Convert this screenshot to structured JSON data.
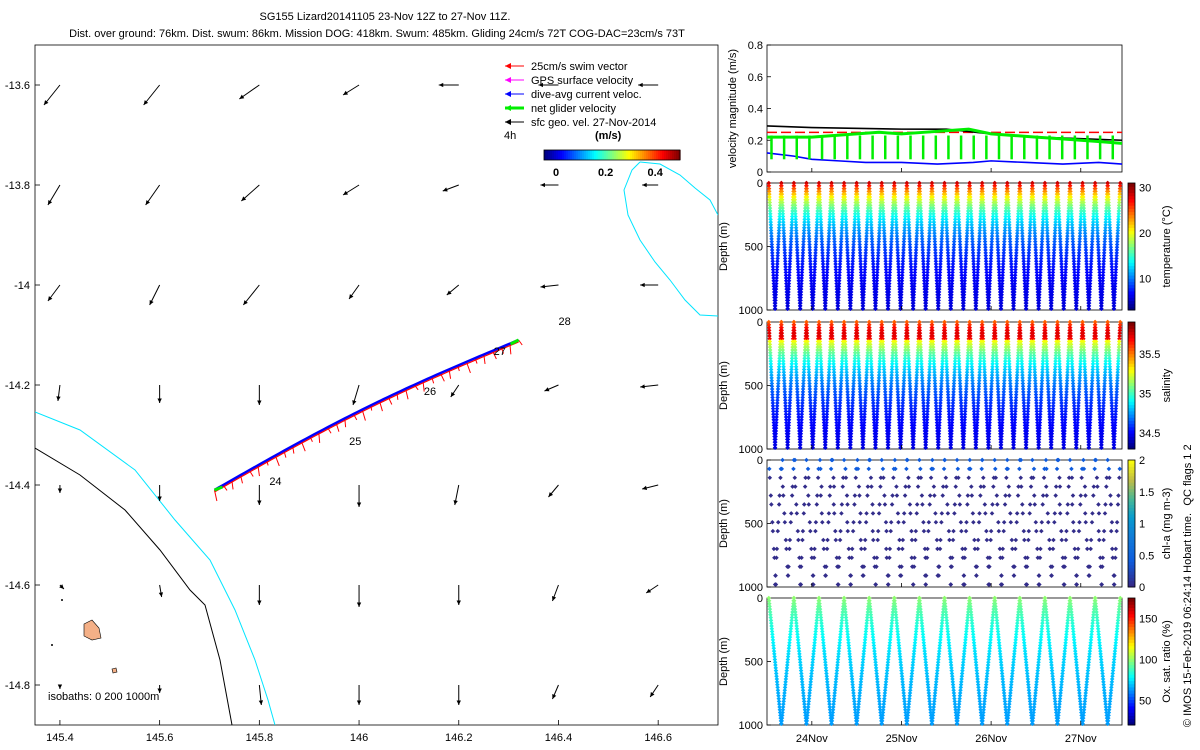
{
  "header": {
    "title": "SG155 Lizard20141105 23-Nov 12Z to 27-Nov 11Z.",
    "subtitle": "Dist. over ground: 76km. Dist. swum: 86km. Mission DOG: 418km. Swum: 485km. Gliding 24cm/s 72T COG-DAC=23cm/s 73T"
  },
  "legend": {
    "items": [
      {
        "label": "25cm/s swim vector",
        "color": "#ff0000"
      },
      {
        "label": "GPS surface velocity",
        "color": "#ff00ff"
      },
      {
        "label": "dive-avg current veloc.",
        "color": "#0000ff"
      },
      {
        "label": "net glider velocity",
        "color": "#00ee00"
      },
      {
        "label": "sfc geo. vel. 27-Nov-2014",
        "color": "#000000"
      }
    ],
    "time_label": "4h",
    "colorbar_unit": "(m/s)",
    "colorbar_ticks": [
      "0",
      "0.2",
      "0.4"
    ]
  },
  "chart_data": [
    {
      "type": "map",
      "xlim": [
        145.35,
        146.72
      ],
      "ylim": [
        -14.88,
        -13.52
      ],
      "x_ticks": [
        "145.4",
        "145.6",
        "145.8",
        "146",
        "146.2",
        "146.4",
        "146.6"
      ],
      "y_ticks": [
        "-13.6",
        "-13.8",
        "-14",
        "-14.2",
        "-14.4",
        "-14.6",
        "-14.8"
      ],
      "isobaths_label": "isobaths: 0   200  1000m",
      "track_start": [
        145.71,
        -14.41
      ],
      "track_end": [
        146.32,
        -14.11
      ],
      "day_labels": [
        {
          "text": "24",
          "lon": 145.82,
          "lat": -14.4
        },
        {
          "text": "25",
          "lon": 145.98,
          "lat": -14.32
        },
        {
          "text": "26",
          "lon": 146.13,
          "lat": -14.22
        },
        {
          "text": "27",
          "lon": 146.27,
          "lat": -14.14
        },
        {
          "text": "28",
          "lon": 146.4,
          "lat": -14.08
        }
      ],
      "geo_velocity_grid": {
        "lons": [
          145.4,
          145.6,
          145.8,
          146.0,
          146.2,
          146.4,
          146.6
        ],
        "lats": [
          -13.6,
          -13.8,
          -14.0,
          -14.2,
          -14.4,
          -14.6,
          -14.8
        ],
        "u": [
          [
            -0.08,
            -0.08,
            -0.1,
            -0.08,
            -0.1,
            -0.1,
            -0.1
          ],
          [
            -0.06,
            -0.07,
            -0.09,
            -0.08,
            -0.08,
            -0.09,
            -0.08
          ],
          [
            -0.06,
            -0.05,
            -0.08,
            -0.05,
            -0.06,
            -0.09,
            -0.09
          ],
          [
            -0.01,
            0.0,
            0.0,
            -0.03,
            -0.04,
            -0.07,
            -0.09
          ],
          [
            0.0,
            0.0,
            0.0,
            0.0,
            -0.02,
            -0.05,
            -0.08
          ],
          [
            0.02,
            0.01,
            0.0,
            0.0,
            0.0,
            -0.03,
            -0.06
          ],
          [
            0.0,
            0.0,
            0.01,
            0.0,
            0.0,
            -0.03,
            -0.04
          ]
        ],
        "v": [
          [
            -0.1,
            -0.1,
            -0.07,
            -0.05,
            0.0,
            0.0,
            0.0
          ],
          [
            -0.1,
            -0.1,
            -0.08,
            -0.05,
            -0.03,
            0.0,
            0.0
          ],
          [
            -0.08,
            -0.1,
            -0.1,
            -0.07,
            -0.05,
            -0.01,
            0.0
          ],
          [
            -0.08,
            -0.09,
            -0.1,
            -0.1,
            -0.06,
            -0.03,
            -0.01
          ],
          [
            -0.04,
            -0.08,
            -0.1,
            -0.11,
            -0.1,
            -0.06,
            -0.02
          ],
          [
            -0.02,
            -0.06,
            -0.1,
            -0.11,
            -0.1,
            -0.08,
            -0.04
          ],
          [
            -0.02,
            -0.04,
            -0.1,
            -0.1,
            -0.1,
            -0.07,
            -0.06
          ]
        ]
      }
    },
    {
      "type": "line",
      "ylabel": "velocity magnitude (m/s)",
      "ylim": [
        0,
        0.8
      ],
      "y_ticks": [
        "0",
        "0.2",
        "0.4",
        "0.6",
        "0.8"
      ],
      "xlim": [
        23.5,
        27.46
      ],
      "series": [
        {
          "color": "#ff0000",
          "x": [
            23.5,
            27.46
          ],
          "values": [
            0.25,
            0.25
          ]
        },
        {
          "color": "#000000",
          "x": [
            23.5,
            24.0,
            25.0,
            25.5,
            26.0,
            26.5,
            27.0,
            27.46
          ],
          "values": [
            0.29,
            0.28,
            0.27,
            0.27,
            0.24,
            0.22,
            0.21,
            0.2
          ]
        },
        {
          "color": "#0000ff",
          "x": [
            23.5,
            23.8,
            24.0,
            24.3,
            24.6,
            25.0,
            25.4,
            25.8,
            26.0,
            26.4,
            26.8,
            27.2,
            27.46
          ],
          "values": [
            0.12,
            0.1,
            0.08,
            0.07,
            0.06,
            0.06,
            0.05,
            0.06,
            0.07,
            0.06,
            0.05,
            0.06,
            0.05
          ]
        },
        {
          "color": "#00ee00",
          "x": [
            23.5,
            23.75,
            24.0,
            24.25,
            24.5,
            24.75,
            25.0,
            25.25,
            25.5,
            25.75,
            26.0,
            26.25,
            26.5,
            26.75,
            27.0,
            27.25,
            27.46
          ],
          "values": [
            0.22,
            0.22,
            0.22,
            0.23,
            0.24,
            0.25,
            0.24,
            0.25,
            0.26,
            0.27,
            0.24,
            0.23,
            0.22,
            0.21,
            0.2,
            0.19,
            0.18
          ]
        }
      ]
    },
    {
      "type": "scatter",
      "variable": "temperature",
      "ylabel": "Depth (m)",
      "clabel": "temperature (°C)",
      "ylim": [
        1000,
        0
      ],
      "y_ticks": [
        "0",
        "500",
        "1000"
      ],
      "clim": [
        3,
        31
      ],
      "c_ticks": [
        "10",
        "20",
        "30"
      ],
      "profiles": 28,
      "surface_value": 29,
      "deep_value": 5
    },
    {
      "type": "scatter",
      "variable": "salinity",
      "ylabel": "Depth (m)",
      "clabel": "salinity",
      "ylim": [
        1000,
        0
      ],
      "y_ticks": [
        "0",
        "500",
        "1000"
      ],
      "clim": [
        34.3,
        35.9
      ],
      "c_ticks": [
        "34.5",
        "35",
        "35.5"
      ],
      "profiles": 28,
      "surface_value": 35.6,
      "deep_value": 34.4
    },
    {
      "type": "scatter",
      "variable": "chl-a",
      "ylabel": "Depth (m)",
      "clabel": "chl-a (mg m-3)",
      "ylim": [
        1000,
        0
      ],
      "y_ticks": [
        "0",
        "500",
        "1000"
      ],
      "clim": [
        0,
        2
      ],
      "c_ticks": [
        "0",
        "0.5",
        "1",
        "1.5",
        "2"
      ],
      "profiles": 28,
      "surface_value": 0.4,
      "deep_value": 0.0
    },
    {
      "type": "scatter",
      "variable": "oxygen",
      "ylabel": "Depth (m)",
      "clabel": "Ox. sat. ratio (%)",
      "ylim": [
        1000,
        0
      ],
      "y_ticks": [
        "0",
        "500",
        "1000"
      ],
      "clim": [
        20,
        175
      ],
      "c_ticks": [
        "50",
        "100",
        "150"
      ],
      "profiles": 14,
      "surface_value": 100,
      "deep_value": 60
    }
  ],
  "time_axis": {
    "xlim": [
      23.5,
      27.46
    ],
    "ticks": [
      {
        "value": 24,
        "label": "24Nov"
      },
      {
        "value": 25,
        "label": "25Nov"
      },
      {
        "value": 26,
        "label": "26Nov"
      },
      {
        "value": 27,
        "label": "27Nov"
      }
    ]
  },
  "footer": {
    "qc_flags": "QC flags 1  2",
    "credit": "© IMOS 15-Feb-2019 06:24:14 Hobart time."
  }
}
